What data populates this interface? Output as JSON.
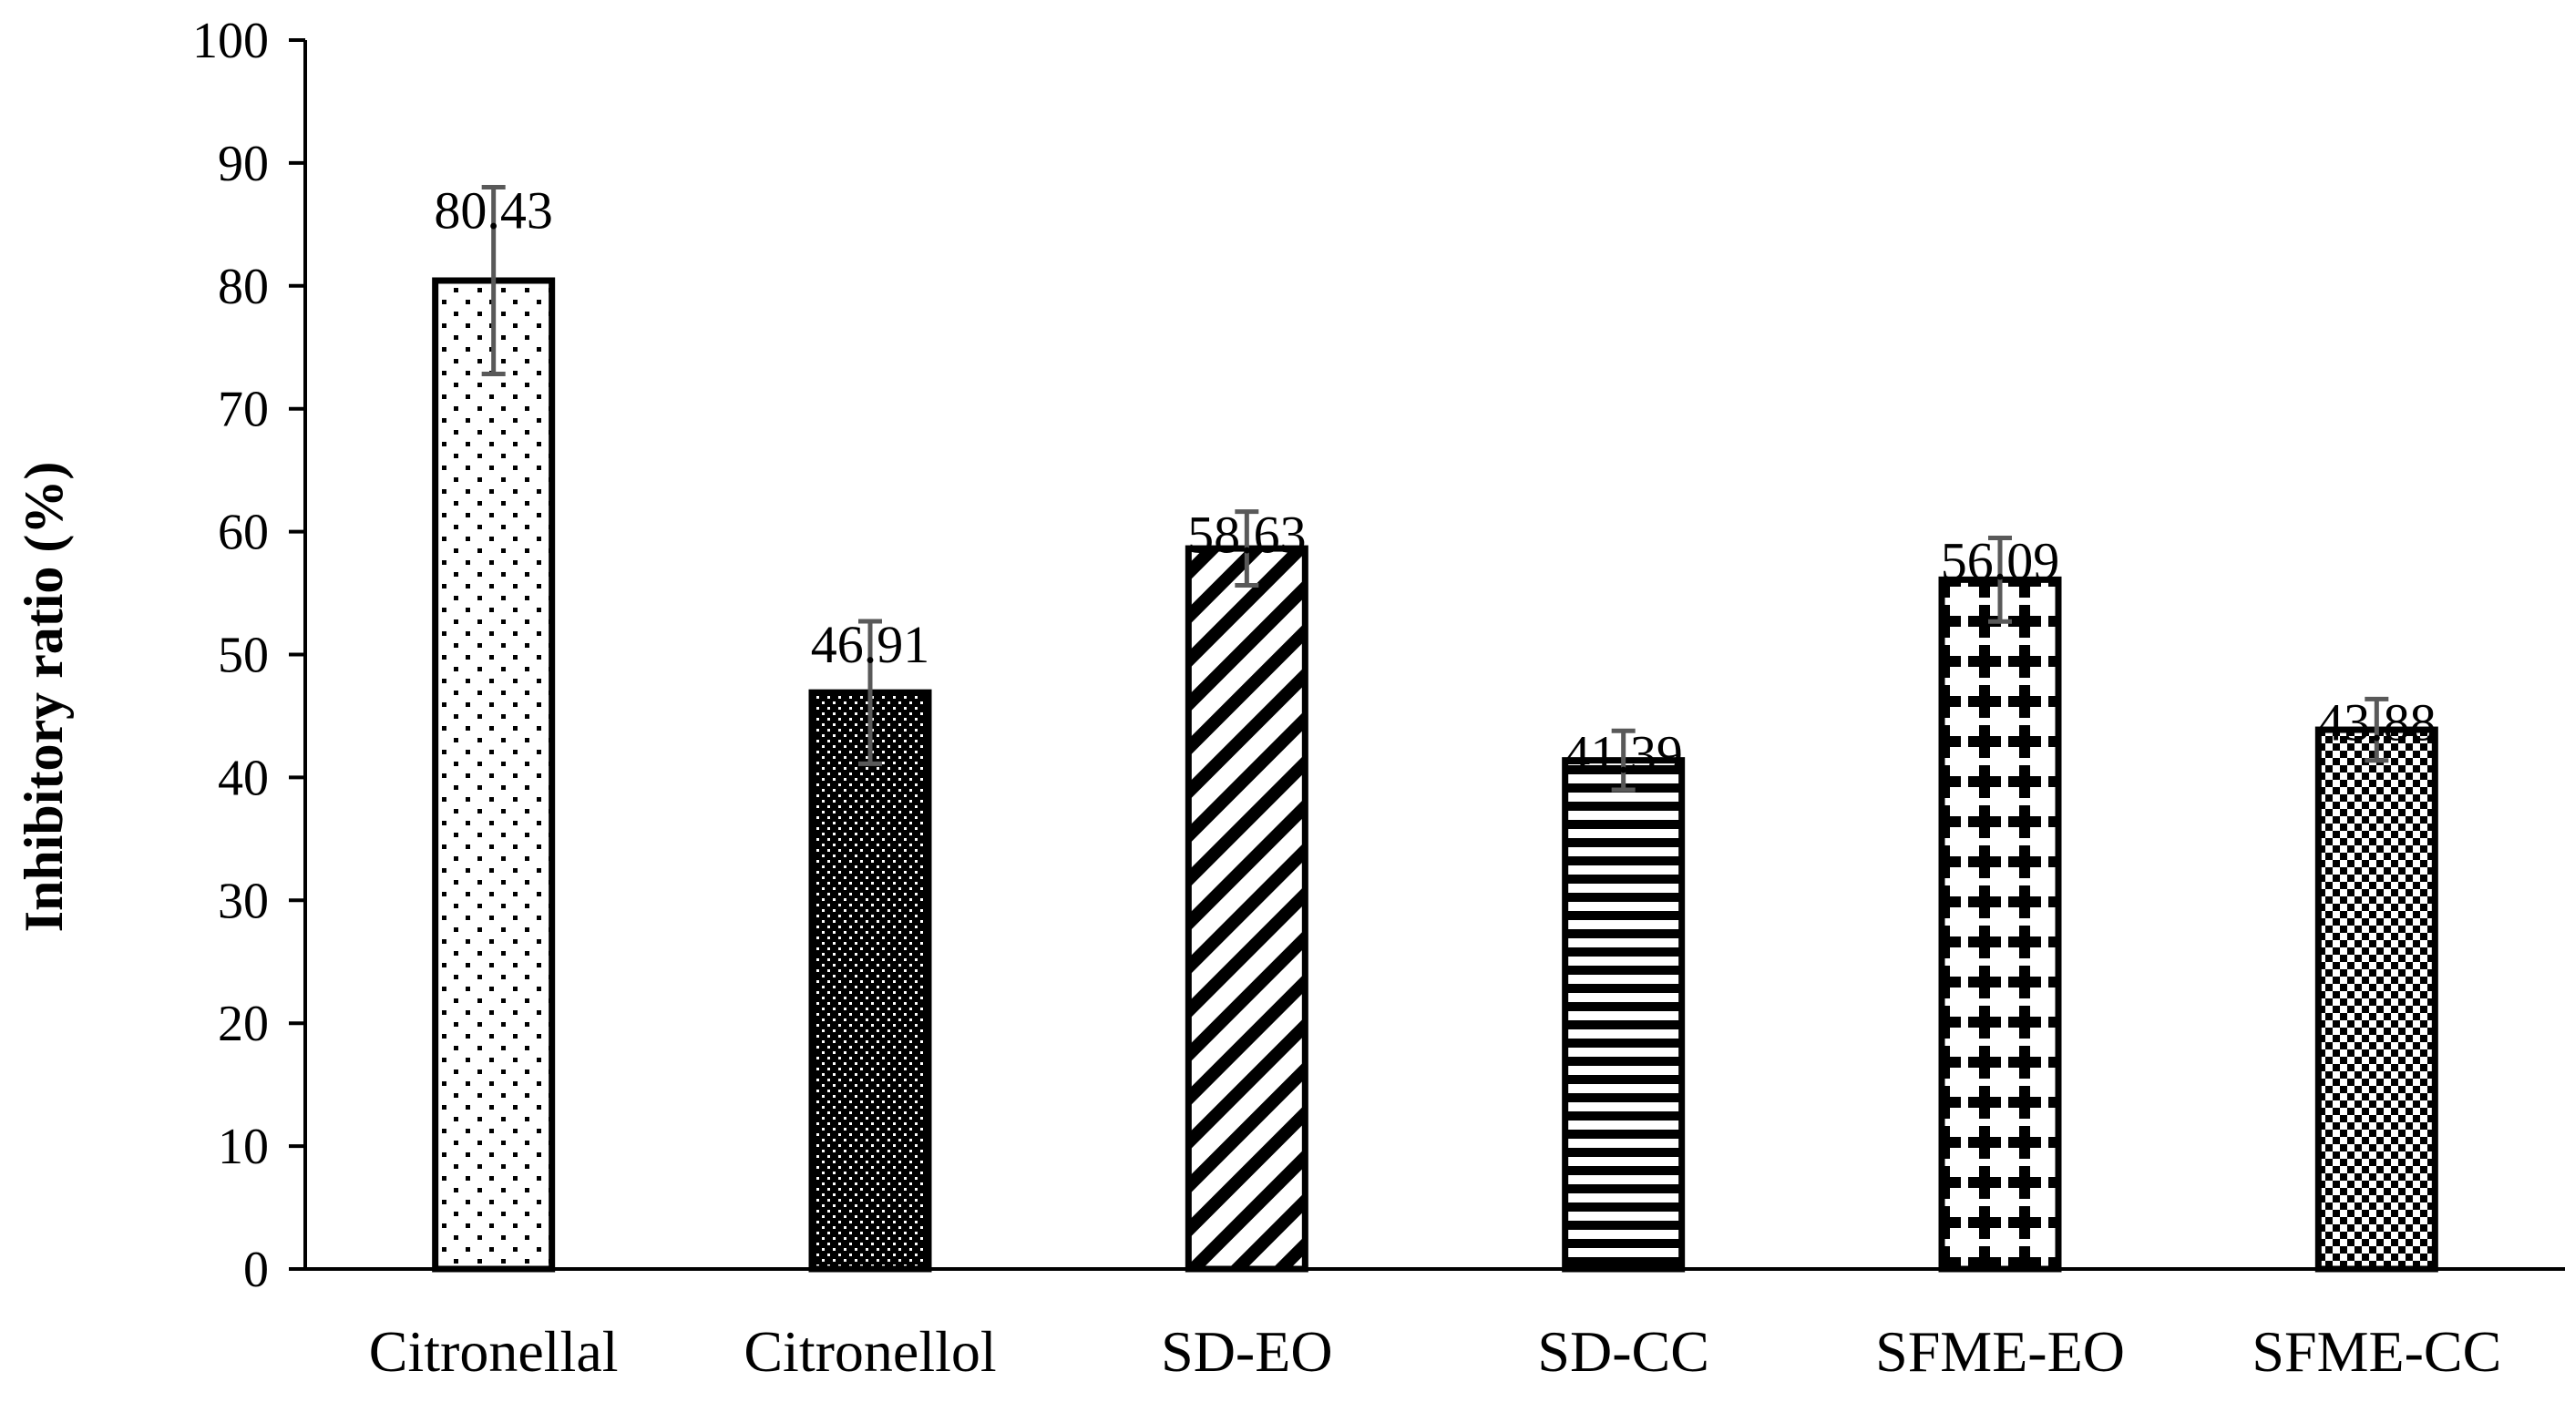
{
  "chart_data": {
    "type": "bar",
    "title": "",
    "xlabel": "",
    "ylabel": "Inhibitory ratio (%)",
    "ylim": [
      0,
      100
    ],
    "yticks": [
      0,
      10,
      20,
      30,
      40,
      50,
      60,
      70,
      80,
      90,
      100
    ],
    "grid": false,
    "categories": [
      "Citronellal",
      "Citronellol",
      "SD-EO",
      "SD-CC",
      "SFME-EO",
      "SFME-CC"
    ],
    "values": [
      80.43,
      46.91,
      58.63,
      41.39,
      56.09,
      43.88
    ],
    "data_labels": [
      "80.43",
      "46.91",
      "58.63",
      "41.39",
      "56.09",
      "43.88"
    ],
    "error_bars": [
      7.6,
      5.8,
      3.0,
      2.4,
      3.4,
      2.5
    ],
    "patterns": [
      "sparse-dots",
      "dense-dots",
      "diagonal-stripes",
      "horizontal-stripes",
      "crosses",
      "checkerboard"
    ],
    "colors": {
      "bar_edge": "#000000",
      "error_bar": "#595959",
      "axis": "#000000"
    }
  }
}
